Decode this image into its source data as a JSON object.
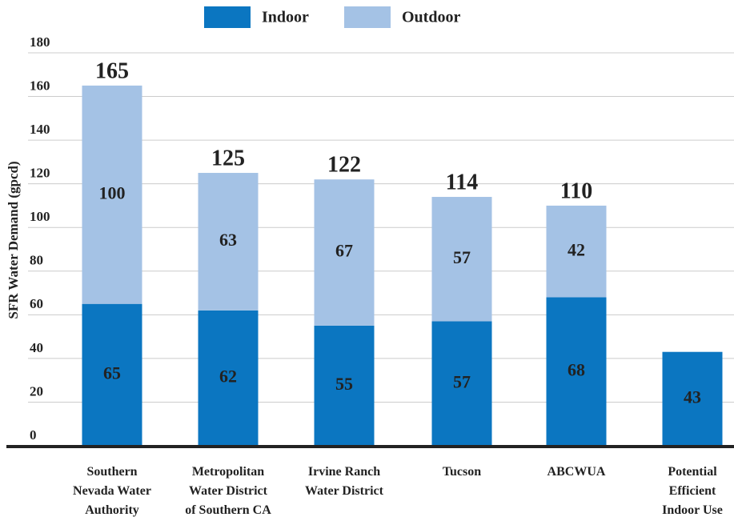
{
  "chart_data": {
    "type": "stacked-bar",
    "y_axis_label": "SFR Water Demand (gpcd)",
    "categories": [
      "Southern\nNevada Water\nAuthority",
      "Metropolitan\nWater District\nof Southern CA",
      "Irvine Ranch\nWater District",
      "Tucson",
      "ABCWUA",
      "Potential\nEfficient\nIndoor Use"
    ],
    "series": [
      {
        "name": "Indoor",
        "color": "#0b76c1",
        "values": [
          65,
          62,
          55,
          57,
          68,
          43
        ]
      },
      {
        "name": "Outdoor",
        "color": "#a4c2e5",
        "values": [
          100,
          63,
          67,
          57,
          42,
          null
        ]
      }
    ],
    "totals": [
      165,
      125,
      122,
      114,
      110,
      null
    ],
    "ylim": [
      0,
      180
    ],
    "yticks": [
      0,
      20,
      40,
      60,
      80,
      100,
      120,
      140,
      160,
      180
    ],
    "grid": true,
    "legend": "top"
  }
}
